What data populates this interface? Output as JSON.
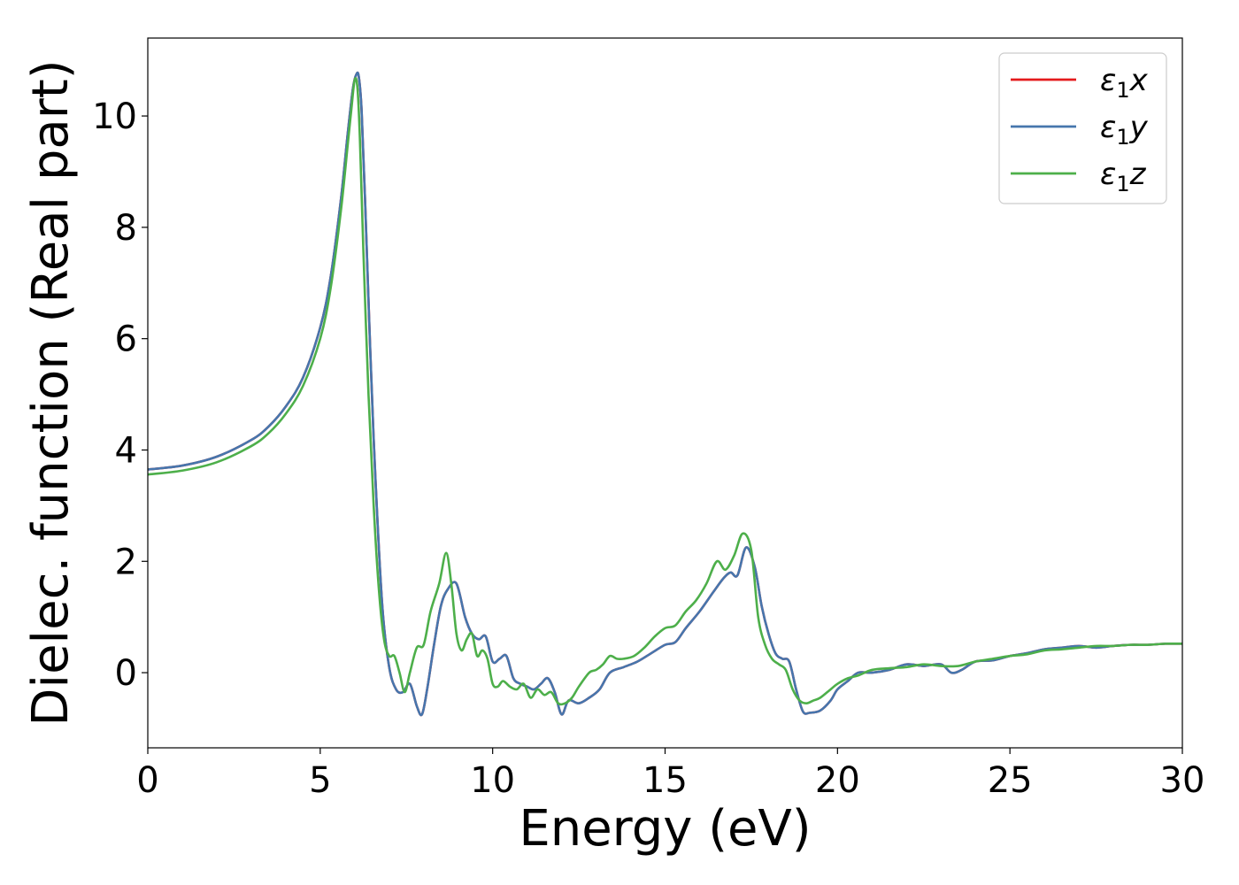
{
  "chart_data": {
    "type": "line",
    "xlabel": "Energy (eV)",
    "ylabel": "Dielec. function (Real part)",
    "xlim": [
      0,
      30
    ],
    "ylim": [
      -1.35,
      11.4
    ],
    "xticks": [
      0,
      5,
      10,
      15,
      20,
      25,
      30
    ],
    "yticks": [
      0,
      2,
      4,
      6,
      8,
      10
    ],
    "grid": false,
    "legend_position": "top-right",
    "series": [
      {
        "name": "ε₁x",
        "label_main": "ε",
        "label_sub": "1",
        "label_suffix": "x",
        "color": "#e41a1c",
        "x": [
          0,
          1,
          2,
          3,
          3.5,
          4,
          4.5,
          5,
          5.3,
          5.6,
          5.8,
          5.95,
          6.05,
          6.12,
          6.2,
          6.3,
          6.45,
          6.6,
          6.8,
          7.0,
          7.2,
          7.4,
          7.6,
          7.8,
          7.95,
          8.1,
          8.3,
          8.5,
          8.7,
          8.95,
          9.2,
          9.4,
          9.6,
          9.8,
          10.0,
          10.2,
          10.4,
          10.6,
          10.8,
          11.0,
          11.2,
          11.4,
          11.6,
          11.8,
          12.0,
          12.2,
          12.5,
          12.8,
          13.1,
          13.4,
          13.8,
          14.2,
          14.6,
          15.0,
          15.3,
          15.6,
          16.0,
          16.4,
          16.7,
          16.9,
          17.1,
          17.35,
          17.6,
          17.8,
          18.0,
          18.2,
          18.4,
          18.6,
          18.8,
          19.0,
          19.2,
          19.5,
          19.8,
          20.0,
          20.3,
          20.6,
          21.0,
          21.5,
          22.0,
          22.5,
          23.0,
          23.3,
          23.6,
          24.0,
          24.5,
          25.0,
          25.5,
          26.0,
          26.5,
          27.0,
          27.5,
          28.0,
          28.5,
          29.0,
          29.5,
          30.0
        ],
        "y": [
          3.65,
          3.72,
          3.88,
          4.18,
          4.42,
          4.78,
          5.3,
          6.2,
          7.1,
          8.5,
          9.7,
          10.5,
          10.75,
          10.7,
          10.1,
          8.5,
          5.8,
          3.5,
          1.2,
          0.1,
          -0.3,
          -0.35,
          -0.2,
          -0.6,
          -0.75,
          -0.3,
          0.5,
          1.2,
          1.5,
          1.6,
          1.0,
          0.7,
          0.6,
          0.65,
          0.2,
          0.25,
          0.3,
          -0.1,
          -0.2,
          -0.25,
          -0.3,
          -0.2,
          -0.1,
          -0.35,
          -0.75,
          -0.5,
          -0.55,
          -0.45,
          -0.3,
          0.0,
          0.1,
          0.2,
          0.35,
          0.5,
          0.55,
          0.8,
          1.1,
          1.45,
          1.7,
          1.8,
          1.75,
          2.25,
          1.9,
          1.2,
          0.7,
          0.35,
          0.25,
          0.2,
          -0.3,
          -0.7,
          -0.72,
          -0.68,
          -0.5,
          -0.3,
          -0.15,
          0.0,
          0.0,
          0.05,
          0.15,
          0.12,
          0.15,
          0.0,
          0.05,
          0.2,
          0.22,
          0.3,
          0.35,
          0.42,
          0.45,
          0.48,
          0.45,
          0.48,
          0.5,
          0.5,
          0.52,
          0.52
        ]
      },
      {
        "name": "ε₁y",
        "label_main": "ε",
        "label_sub": "1",
        "label_suffix": "y",
        "color": "#4676ad",
        "x": [
          0,
          1,
          2,
          3,
          3.5,
          4,
          4.5,
          5,
          5.3,
          5.6,
          5.8,
          5.95,
          6.05,
          6.12,
          6.2,
          6.3,
          6.45,
          6.6,
          6.8,
          7.0,
          7.2,
          7.4,
          7.6,
          7.8,
          7.95,
          8.1,
          8.3,
          8.5,
          8.7,
          8.95,
          9.2,
          9.4,
          9.6,
          9.8,
          10.0,
          10.2,
          10.4,
          10.6,
          10.8,
          11.0,
          11.2,
          11.4,
          11.6,
          11.8,
          12.0,
          12.2,
          12.5,
          12.8,
          13.1,
          13.4,
          13.8,
          14.2,
          14.6,
          15.0,
          15.3,
          15.6,
          16.0,
          16.4,
          16.7,
          16.9,
          17.1,
          17.35,
          17.6,
          17.8,
          18.0,
          18.2,
          18.4,
          18.6,
          18.8,
          19.0,
          19.2,
          19.5,
          19.8,
          20.0,
          20.3,
          20.6,
          21.0,
          21.5,
          22.0,
          22.5,
          23.0,
          23.3,
          23.6,
          24.0,
          24.5,
          25.0,
          25.5,
          26.0,
          26.5,
          27.0,
          27.5,
          28.0,
          28.5,
          29.0,
          29.5,
          30.0
        ],
        "y": [
          3.65,
          3.72,
          3.88,
          4.18,
          4.42,
          4.78,
          5.3,
          6.2,
          7.1,
          8.5,
          9.7,
          10.5,
          10.75,
          10.7,
          10.1,
          8.5,
          5.8,
          3.5,
          1.2,
          0.1,
          -0.3,
          -0.35,
          -0.2,
          -0.6,
          -0.75,
          -0.3,
          0.5,
          1.2,
          1.5,
          1.6,
          1.0,
          0.7,
          0.6,
          0.65,
          0.2,
          0.25,
          0.3,
          -0.1,
          -0.2,
          -0.25,
          -0.3,
          -0.2,
          -0.1,
          -0.35,
          -0.75,
          -0.5,
          -0.55,
          -0.45,
          -0.3,
          0.0,
          0.1,
          0.2,
          0.35,
          0.5,
          0.55,
          0.8,
          1.1,
          1.45,
          1.7,
          1.8,
          1.75,
          2.25,
          1.9,
          1.2,
          0.7,
          0.35,
          0.25,
          0.2,
          -0.3,
          -0.7,
          -0.72,
          -0.68,
          -0.5,
          -0.3,
          -0.15,
          0.0,
          0.0,
          0.05,
          0.15,
          0.12,
          0.15,
          0.0,
          0.05,
          0.2,
          0.22,
          0.3,
          0.35,
          0.42,
          0.45,
          0.48,
          0.45,
          0.48,
          0.5,
          0.5,
          0.52,
          0.52
        ]
      },
      {
        "name": "ε₁z",
        "label_main": "ε",
        "label_sub": "1",
        "label_suffix": "z",
        "color": "#4daf4a",
        "x": [
          0,
          1,
          2,
          3,
          3.5,
          4,
          4.5,
          5,
          5.3,
          5.6,
          5.8,
          5.9,
          6.0,
          6.08,
          6.15,
          6.25,
          6.4,
          6.55,
          6.7,
          6.85,
          7.0,
          7.15,
          7.3,
          7.45,
          7.6,
          7.8,
          8.0,
          8.2,
          8.45,
          8.65,
          8.8,
          8.95,
          9.1,
          9.25,
          9.4,
          9.55,
          9.7,
          9.85,
          10.0,
          10.15,
          10.3,
          10.5,
          10.7,
          10.9,
          11.1,
          11.3,
          11.5,
          11.7,
          11.9,
          12.1,
          12.3,
          12.5,
          12.8,
          13.0,
          13.2,
          13.4,
          13.6,
          13.8,
          14.1,
          14.4,
          14.7,
          15.0,
          15.3,
          15.6,
          15.9,
          16.2,
          16.5,
          16.75,
          17.0,
          17.25,
          17.5,
          17.7,
          17.9,
          18.1,
          18.3,
          18.5,
          18.7,
          18.9,
          19.1,
          19.3,
          19.5,
          19.8,
          20.0,
          20.3,
          20.6,
          21.0,
          21.5,
          22.0,
          22.5,
          23.0,
          23.5,
          24.0,
          24.5,
          25.0,
          25.5,
          26.0,
          26.5,
          27.0,
          27.5,
          28.0,
          28.5,
          29.0,
          29.5,
          30.0
        ],
        "y": [
          3.56,
          3.63,
          3.78,
          4.07,
          4.3,
          4.65,
          5.15,
          6.0,
          6.9,
          8.3,
          9.5,
          10.1,
          10.65,
          10.5,
          9.6,
          7.6,
          5.0,
          3.0,
          1.5,
          0.6,
          0.3,
          0.3,
          0.0,
          -0.35,
          0.0,
          0.45,
          0.5,
          1.1,
          1.6,
          2.15,
          1.6,
          0.7,
          0.4,
          0.6,
          0.7,
          0.3,
          0.4,
          0.25,
          -0.2,
          -0.25,
          -0.15,
          -0.25,
          -0.3,
          -0.2,
          -0.45,
          -0.3,
          -0.4,
          -0.35,
          -0.55,
          -0.55,
          -0.45,
          -0.25,
          0.0,
          0.05,
          0.15,
          0.3,
          0.25,
          0.25,
          0.3,
          0.45,
          0.65,
          0.8,
          0.85,
          1.1,
          1.3,
          1.6,
          2.0,
          1.85,
          2.1,
          2.5,
          2.2,
          1.0,
          0.5,
          0.25,
          0.15,
          0.05,
          -0.3,
          -0.5,
          -0.55,
          -0.5,
          -0.45,
          -0.3,
          -0.2,
          -0.1,
          -0.05,
          0.05,
          0.08,
          0.1,
          0.15,
          0.12,
          0.12,
          0.2,
          0.25,
          0.3,
          0.33,
          0.4,
          0.42,
          0.45,
          0.48,
          0.48,
          0.5,
          0.5,
          0.52,
          0.52
        ]
      }
    ]
  }
}
